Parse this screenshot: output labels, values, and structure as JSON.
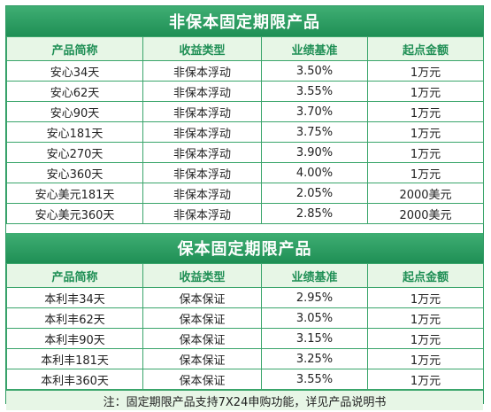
{
  "section1": {
    "title": "非保本固定期限产品",
    "headers": [
      "产品简称",
      "收益类型",
      "业绩基准",
      "起点金额"
    ],
    "rows": [
      [
        "安心34天",
        "非保本浮动",
        "3.50%",
        "1万元"
      ],
      [
        "安心62天",
        "非保本浮动",
        "3.55%",
        "1万元"
      ],
      [
        "安心90天",
        "非保本浮动",
        "3.70%",
        "1万元"
      ],
      [
        "安心181天",
        "非保本浮动",
        "3.75%",
        "1万元"
      ],
      [
        "安心270天",
        "非保本浮动",
        "3.90%",
        "1万元"
      ],
      [
        "安心360天",
        "非保本浮动",
        "4.00%",
        "1万元"
      ],
      [
        "安心美元181天",
        "非保本浮动",
        "2.05%",
        "2000美元"
      ],
      [
        "安心美元360天",
        "非保本浮动",
        "2.85%",
        "2000美元"
      ]
    ]
  },
  "section2": {
    "title": "保本固定期限产品",
    "headers": [
      "产品简称",
      "收益类型",
      "业绩基准",
      "起点金额"
    ],
    "rows": [
      [
        "本利丰34天",
        "保本保证",
        "2.95%",
        "1万元"
      ],
      [
        "本利丰62天",
        "保本保证",
        "3.05%",
        "1万元"
      ],
      [
        "本利丰90天",
        "保本保证",
        "3.15%",
        "1万元"
      ],
      [
        "本利丰181天",
        "保本保证",
        "3.25%",
        "1万元"
      ],
      [
        "本利丰360天",
        "保本保证",
        "3.55%",
        "1万元"
      ]
    ]
  },
  "note": "注：固定期限产品支持7X24申购功能，详见产品说明书",
  "colors": {
    "header_green": "#1f8f55",
    "border_green": "#3aa56b",
    "light_green": "#e7f6e6"
  }
}
